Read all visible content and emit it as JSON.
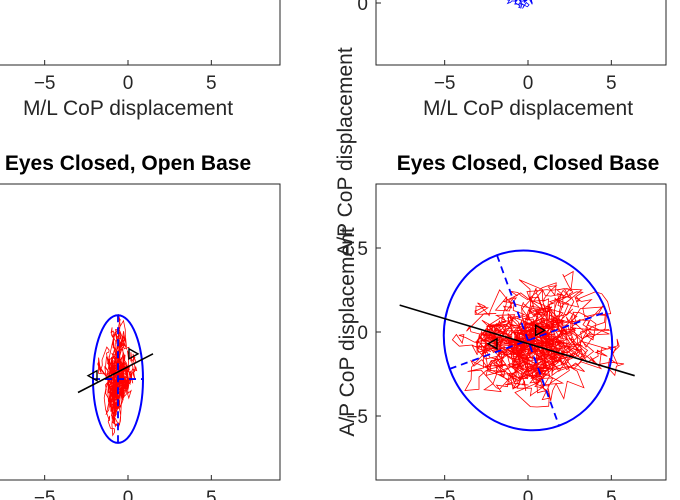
{
  "chart_data": [
    {
      "panel": "top-left",
      "type": "line",
      "title": "",
      "xlabel": "M/L CoP displacement",
      "ylabel": "",
      "xticks": [
        -5,
        0,
        5
      ],
      "yticks": [],
      "xlim": [
        -9,
        9
      ],
      "series": [],
      "grid": false
    },
    {
      "panel": "top-right",
      "type": "line",
      "title": "",
      "xlabel": "M/L CoP displacement",
      "ylabel": "A/P CoP displacement",
      "xticks": [
        -5,
        0,
        5
      ],
      "yticks": [
        0
      ],
      "xlim": [
        -9,
        9
      ],
      "series": [
        {
          "color": "#0000ff",
          "trace_center": [
            -0.4,
            0.5
          ],
          "trace_spread": [
            0.6,
            0.5
          ]
        }
      ],
      "grid": false
    },
    {
      "panel": "bottom-left",
      "type": "line",
      "title": "Eyes Closed, Open Base",
      "xlabel": "",
      "ylabel": "",
      "xticks": [
        -5,
        0,
        5
      ],
      "yticks": [],
      "xlim": [
        -9,
        9
      ],
      "ylim": [
        -8.8,
        8.8
      ],
      "series": [
        {
          "color": "#ff0000",
          "trace_center": [
            -0.6,
            -2.8
          ],
          "trace_spread": [
            0.7,
            2.4
          ]
        }
      ],
      "ellipse": {
        "color": "#0000ff",
        "center": [
          -0.6,
          -2.8
        ],
        "semi_axes": [
          1.5,
          3.8
        ],
        "angle_deg": 0
      },
      "regression_line": {
        "color": "#000000",
        "x": [
          -3,
          1.5
        ],
        "y": [
          -3.6,
          -1.3
        ]
      },
      "markers": [
        {
          "x": -2.1,
          "y": -2.6
        },
        {
          "x": 0.3,
          "y": -1.3
        }
      ],
      "grid": false
    },
    {
      "panel": "bottom-right",
      "type": "line",
      "title": "Eyes Closed, Closed Base",
      "xlabel": "",
      "ylabel": "A/P CoP displacement",
      "xticks": [
        -5,
        0,
        5
      ],
      "yticks": [
        5,
        0,
        -5
      ],
      "xlim": [
        -9,
        9
      ],
      "ylim": [
        -8.8,
        8.8
      ],
      "series": [
        {
          "color": "#ff0000",
          "trace_center": [
            0,
            -0.5
          ],
          "trace_spread": [
            3.3,
            2.9
          ]
        }
      ],
      "ellipse": {
        "color": "#0000ff",
        "center": [
          0,
          -0.5
        ],
        "semi_axes": [
          5.0,
          5.4
        ],
        "angle_deg": -20
      },
      "regression_line": {
        "color": "#000000",
        "x": [
          -7.7,
          6.4
        ],
        "y": [
          1.6,
          -2.6
        ]
      },
      "markers": [
        {
          "x": -2.1,
          "y": -0.7
        },
        {
          "x": 0.7,
          "y": 0.1
        }
      ],
      "grid": false
    }
  ]
}
